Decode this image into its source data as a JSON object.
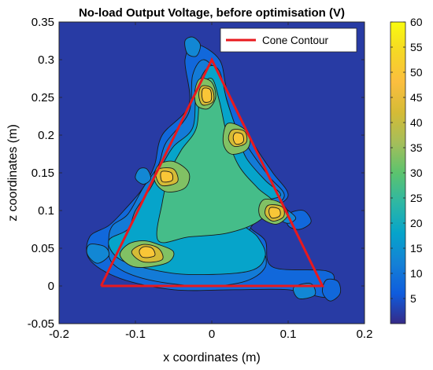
{
  "chart_data": {
    "type": "contour",
    "title": "No-load Output Voltage, before optimisation (V)",
    "xlabel": "x coordinates (m)",
    "ylabel": "z coordinates (m)",
    "xlim": [
      -0.2,
      0.2
    ],
    "ylim": [
      -0.05,
      0.35
    ],
    "xticks": [
      -0.2,
      -0.1,
      0,
      0.1,
      0.2
    ],
    "xtick_labels": [
      "-0.2",
      "-0.1",
      "0",
      "0.1",
      "0.2"
    ],
    "yticks": [
      -0.05,
      0,
      0.05,
      0.1,
      0.15,
      0.2,
      0.25,
      0.3,
      0.35
    ],
    "ytick_labels": [
      "-0.05",
      "0",
      "0.05",
      "0.1",
      "0.15",
      "0.2",
      "0.25",
      "0.3",
      "0.35"
    ],
    "grid": false,
    "legend": {
      "placement": "top-right",
      "entries": [
        "Cone Contour"
      ]
    },
    "colorbar": {
      "range": [
        0,
        60
      ],
      "ticks": [
        5,
        10,
        15,
        20,
        25,
        30,
        35,
        40,
        45,
        50,
        55,
        60
      ],
      "tick_labels": [
        "5",
        "10",
        "15",
        "20",
        "25",
        "30",
        "35",
        "40",
        "45",
        "50",
        "55",
        "60"
      ],
      "colormap": "parula"
    },
    "series": [
      {
        "name": "Cone Contour",
        "type": "line",
        "color": "#e8191e",
        "x": [
          -0.145,
          0.0,
          0.145,
          -0.145
        ],
        "y": [
          0.0,
          0.3,
          0.0,
          0.0
        ]
      }
    ],
    "field": {
      "background_value": 2,
      "levels": [
        {
          "value": 8,
          "outline": [
            [
              -0.16,
              0.065
            ],
            [
              -0.16,
              0.035
            ],
            [
              -0.12,
              0.01
            ],
            [
              -0.05,
              -0.005
            ],
            [
              0.03,
              -0.005
            ],
            [
              0.1,
              -0.005
            ],
            [
              0.15,
              -0.015
            ],
            [
              0.16,
              0.005
            ],
            [
              0.15,
              0.02
            ],
            [
              0.08,
              0.025
            ],
            [
              0.07,
              0.06
            ],
            [
              0.05,
              0.08
            ],
            [
              0.075,
              0.1
            ],
            [
              0.1,
              0.12
            ],
            [
              0.08,
              0.15
            ],
            [
              0.06,
              0.18
            ],
            [
              0.04,
              0.215
            ],
            [
              0.02,
              0.26
            ],
            [
              0.01,
              0.3
            ],
            [
              -0.02,
              0.32
            ],
            [
              -0.035,
              0.3
            ],
            [
              -0.03,
              0.24
            ],
            [
              -0.065,
              0.2
            ],
            [
              -0.075,
              0.16
            ],
            [
              -0.09,
              0.13
            ],
            [
              -0.115,
              0.1
            ],
            [
              -0.135,
              0.08
            ]
          ]
        },
        {
          "value": 11,
          "outline": [
            [
              -0.135,
              0.06
            ],
            [
              -0.13,
              0.03
            ],
            [
              -0.09,
              0.01
            ],
            [
              -0.02,
              0.0
            ],
            [
              0.04,
              0.005
            ],
            [
              0.07,
              0.025
            ],
            [
              0.065,
              0.055
            ],
            [
              0.05,
              0.075
            ],
            [
              0.075,
              0.1
            ],
            [
              0.095,
              0.12
            ],
            [
              0.075,
              0.145
            ],
            [
              0.05,
              0.18
            ],
            [
              0.03,
              0.215
            ],
            [
              0.01,
              0.275
            ],
            [
              -0.01,
              0.3
            ],
            [
              -0.025,
              0.28
            ],
            [
              -0.03,
              0.23
            ],
            [
              -0.06,
              0.19
            ],
            [
              -0.07,
              0.16
            ],
            [
              -0.09,
              0.13
            ],
            [
              -0.11,
              0.095
            ],
            [
              -0.13,
              0.08
            ]
          ]
        },
        {
          "value": 18,
          "outline": [
            [
              -0.135,
              0.06
            ],
            [
              -0.12,
              0.035
            ],
            [
              -0.07,
              0.02
            ],
            [
              -0.02,
              0.015
            ],
            [
              0.05,
              0.02
            ],
            [
              0.07,
              0.04
            ],
            [
              0.06,
              0.065
            ],
            [
              0.04,
              0.085
            ],
            [
              0.06,
              0.11
            ],
            [
              0.09,
              0.12
            ],
            [
              0.07,
              0.14
            ],
            [
              0.045,
              0.17
            ],
            [
              0.035,
              0.2
            ],
            [
              0.02,
              0.245
            ],
            [
              0.01,
              0.285
            ],
            [
              -0.005,
              0.29
            ],
            [
              -0.02,
              0.26
            ],
            [
              -0.025,
              0.21
            ],
            [
              -0.05,
              0.185
            ],
            [
              -0.065,
              0.16
            ],
            [
              -0.08,
              0.13
            ],
            [
              -0.1,
              0.1
            ],
            [
              -0.11,
              0.075
            ]
          ]
        },
        {
          "value": 27,
          "outline": [
            [
              -0.07,
              0.06
            ],
            [
              -0.03,
              0.065
            ],
            [
              0.02,
              0.07
            ],
            [
              0.06,
              0.085
            ],
            [
              0.08,
              0.11
            ],
            [
              0.06,
              0.13
            ],
            [
              0.035,
              0.16
            ],
            [
              0.02,
              0.2
            ],
            [
              0.01,
              0.245
            ],
            [
              0.0,
              0.275
            ],
            [
              -0.015,
              0.26
            ],
            [
              -0.02,
              0.21
            ],
            [
              -0.04,
              0.18
            ],
            [
              -0.055,
              0.15
            ],
            [
              -0.065,
              0.11
            ]
          ]
        },
        {
          "value": 33,
          "outline": [
            [
              -0.09,
              0.06
            ],
            [
              -0.07,
              0.055
            ],
            [
              -0.05,
              0.045
            ],
            [
              -0.06,
              0.03
            ],
            [
              -0.1,
              0.025
            ],
            [
              -0.12,
              0.04
            ],
            [
              -0.11,
              0.055
            ]
          ]
        },
        {
          "value": 33,
          "outline": [
            [
              -0.07,
              0.16
            ],
            [
              -0.05,
              0.165
            ],
            [
              -0.03,
              0.15
            ],
            [
              -0.035,
              0.13
            ],
            [
              -0.06,
              0.125
            ],
            [
              -0.075,
              0.14
            ]
          ]
        },
        {
          "value": 33,
          "outline": [
            [
              0.02,
              0.215
            ],
            [
              0.04,
              0.21
            ],
            [
              0.05,
              0.195
            ],
            [
              0.045,
              0.18
            ],
            [
              0.025,
              0.175
            ],
            [
              0.015,
              0.19
            ]
          ]
        },
        {
          "value": 33,
          "outline": [
            [
              0.07,
              0.115
            ],
            [
              0.09,
              0.11
            ],
            [
              0.1,
              0.095
            ],
            [
              0.085,
              0.082
            ],
            [
              0.065,
              0.09
            ],
            [
              0.062,
              0.105
            ]
          ]
        },
        {
          "value": 33,
          "outline": [
            [
              -0.015,
              0.275
            ],
            [
              0.0,
              0.27
            ],
            [
              0.005,
              0.25
            ],
            [
              -0.005,
              0.235
            ],
            [
              -0.02,
              0.24
            ],
            [
              -0.022,
              0.26
            ]
          ]
        },
        {
          "value": 42,
          "outline": [
            [
              -0.09,
              0.055
            ],
            [
              -0.07,
              0.05
            ],
            [
              -0.065,
              0.035
            ],
            [
              -0.09,
              0.032
            ],
            [
              -0.105,
              0.045
            ]
          ]
        },
        {
          "value": 42,
          "outline": [
            [
              -0.07,
              0.155
            ],
            [
              -0.05,
              0.155
            ],
            [
              -0.045,
              0.138
            ],
            [
              -0.065,
              0.133
            ],
            [
              -0.073,
              0.145
            ]
          ]
        },
        {
          "value": 42,
          "outline": [
            [
              0.027,
              0.207
            ],
            [
              0.043,
              0.205
            ],
            [
              0.045,
              0.19
            ],
            [
              0.03,
              0.185
            ],
            [
              0.022,
              0.195
            ]
          ]
        },
        {
          "value": 42,
          "outline": [
            [
              0.074,
              0.107
            ],
            [
              0.092,
              0.105
            ],
            [
              0.094,
              0.092
            ],
            [
              0.08,
              0.086
            ],
            [
              0.07,
              0.095
            ]
          ]
        },
        {
          "value": 42,
          "outline": [
            [
              -0.013,
              0.265
            ],
            [
              0.0,
              0.262
            ],
            [
              0.002,
              0.245
            ],
            [
              -0.012,
              0.24
            ],
            [
              -0.017,
              0.253
            ]
          ]
        },
        {
          "value": 50,
          "outline": [
            [
              -0.089,
              0.052
            ],
            [
              -0.078,
              0.05
            ],
            [
              -0.075,
              0.04
            ],
            [
              -0.09,
              0.038
            ],
            [
              -0.095,
              0.046
            ]
          ]
        },
        {
          "value": 50,
          "outline": [
            [
              -0.065,
              0.152
            ],
            [
              -0.053,
              0.15
            ],
            [
              -0.052,
              0.14
            ],
            [
              -0.064,
              0.138
            ],
            [
              -0.067,
              0.145
            ]
          ]
        },
        {
          "value": 50,
          "outline": [
            [
              0.031,
              0.203
            ],
            [
              0.04,
              0.201
            ],
            [
              0.041,
              0.191
            ],
            [
              0.032,
              0.188
            ],
            [
              0.028,
              0.196
            ]
          ]
        },
        {
          "value": 50,
          "outline": [
            [
              0.077,
              0.104
            ],
            [
              0.088,
              0.102
            ],
            [
              0.089,
              0.093
            ],
            [
              0.079,
              0.09
            ],
            [
              0.075,
              0.097
            ]
          ]
        },
        {
          "value": 50,
          "outline": [
            [
              -0.011,
              0.262
            ],
            [
              -0.002,
              0.26
            ],
            [
              -0.001,
              0.246
            ],
            [
              -0.01,
              0.244
            ],
            [
              -0.013,
              0.253
            ]
          ]
        },
        {
          "value": 13,
          "outline": [
            [
              -0.16,
              0.055
            ],
            [
              -0.14,
              0.052
            ],
            [
              -0.135,
              0.04
            ],
            [
              -0.15,
              0.03
            ],
            [
              -0.163,
              0.042
            ]
          ]
        },
        {
          "value": 13,
          "outline": [
            [
              0.09,
              0.105
            ],
            [
              0.1,
              0.1
            ],
            [
              0.11,
              0.09
            ],
            [
              0.1,
              0.083
            ],
            [
              0.088,
              0.09
            ]
          ]
        },
        {
          "value": 13,
          "outline": [
            [
              0.11,
              0.0
            ],
            [
              0.13,
              0.003
            ],
            [
              0.135,
              -0.012
            ],
            [
              0.115,
              -0.017
            ],
            [
              0.107,
              -0.007
            ]
          ]
        },
        {
          "value": 13,
          "outline": [
            [
              -0.095,
              0.155
            ],
            [
              -0.085,
              0.155
            ],
            [
              -0.08,
              0.142
            ],
            [
              -0.09,
              0.135
            ],
            [
              -0.1,
              0.143
            ]
          ]
        },
        {
          "value": 13,
          "outline": [
            [
              -0.035,
              0.325
            ],
            [
              -0.025,
              0.33
            ],
            [
              -0.015,
              0.32
            ],
            [
              -0.02,
              0.305
            ],
            [
              -0.032,
              0.308
            ]
          ]
        },
        {
          "value": 8,
          "outline": [
            [
              0.15,
              0.008
            ],
            [
              0.165,
              0.006
            ],
            [
              0.168,
              -0.01
            ],
            [
              0.155,
              -0.02
            ],
            [
              0.145,
              -0.008
            ]
          ]
        },
        {
          "value": 8,
          "outline": [
            [
              0.1,
              0.095
            ],
            [
              0.12,
              0.1
            ],
            [
              0.13,
              0.085
            ],
            [
              0.115,
              0.075
            ],
            [
              0.1,
              0.08
            ]
          ]
        }
      ]
    }
  }
}
